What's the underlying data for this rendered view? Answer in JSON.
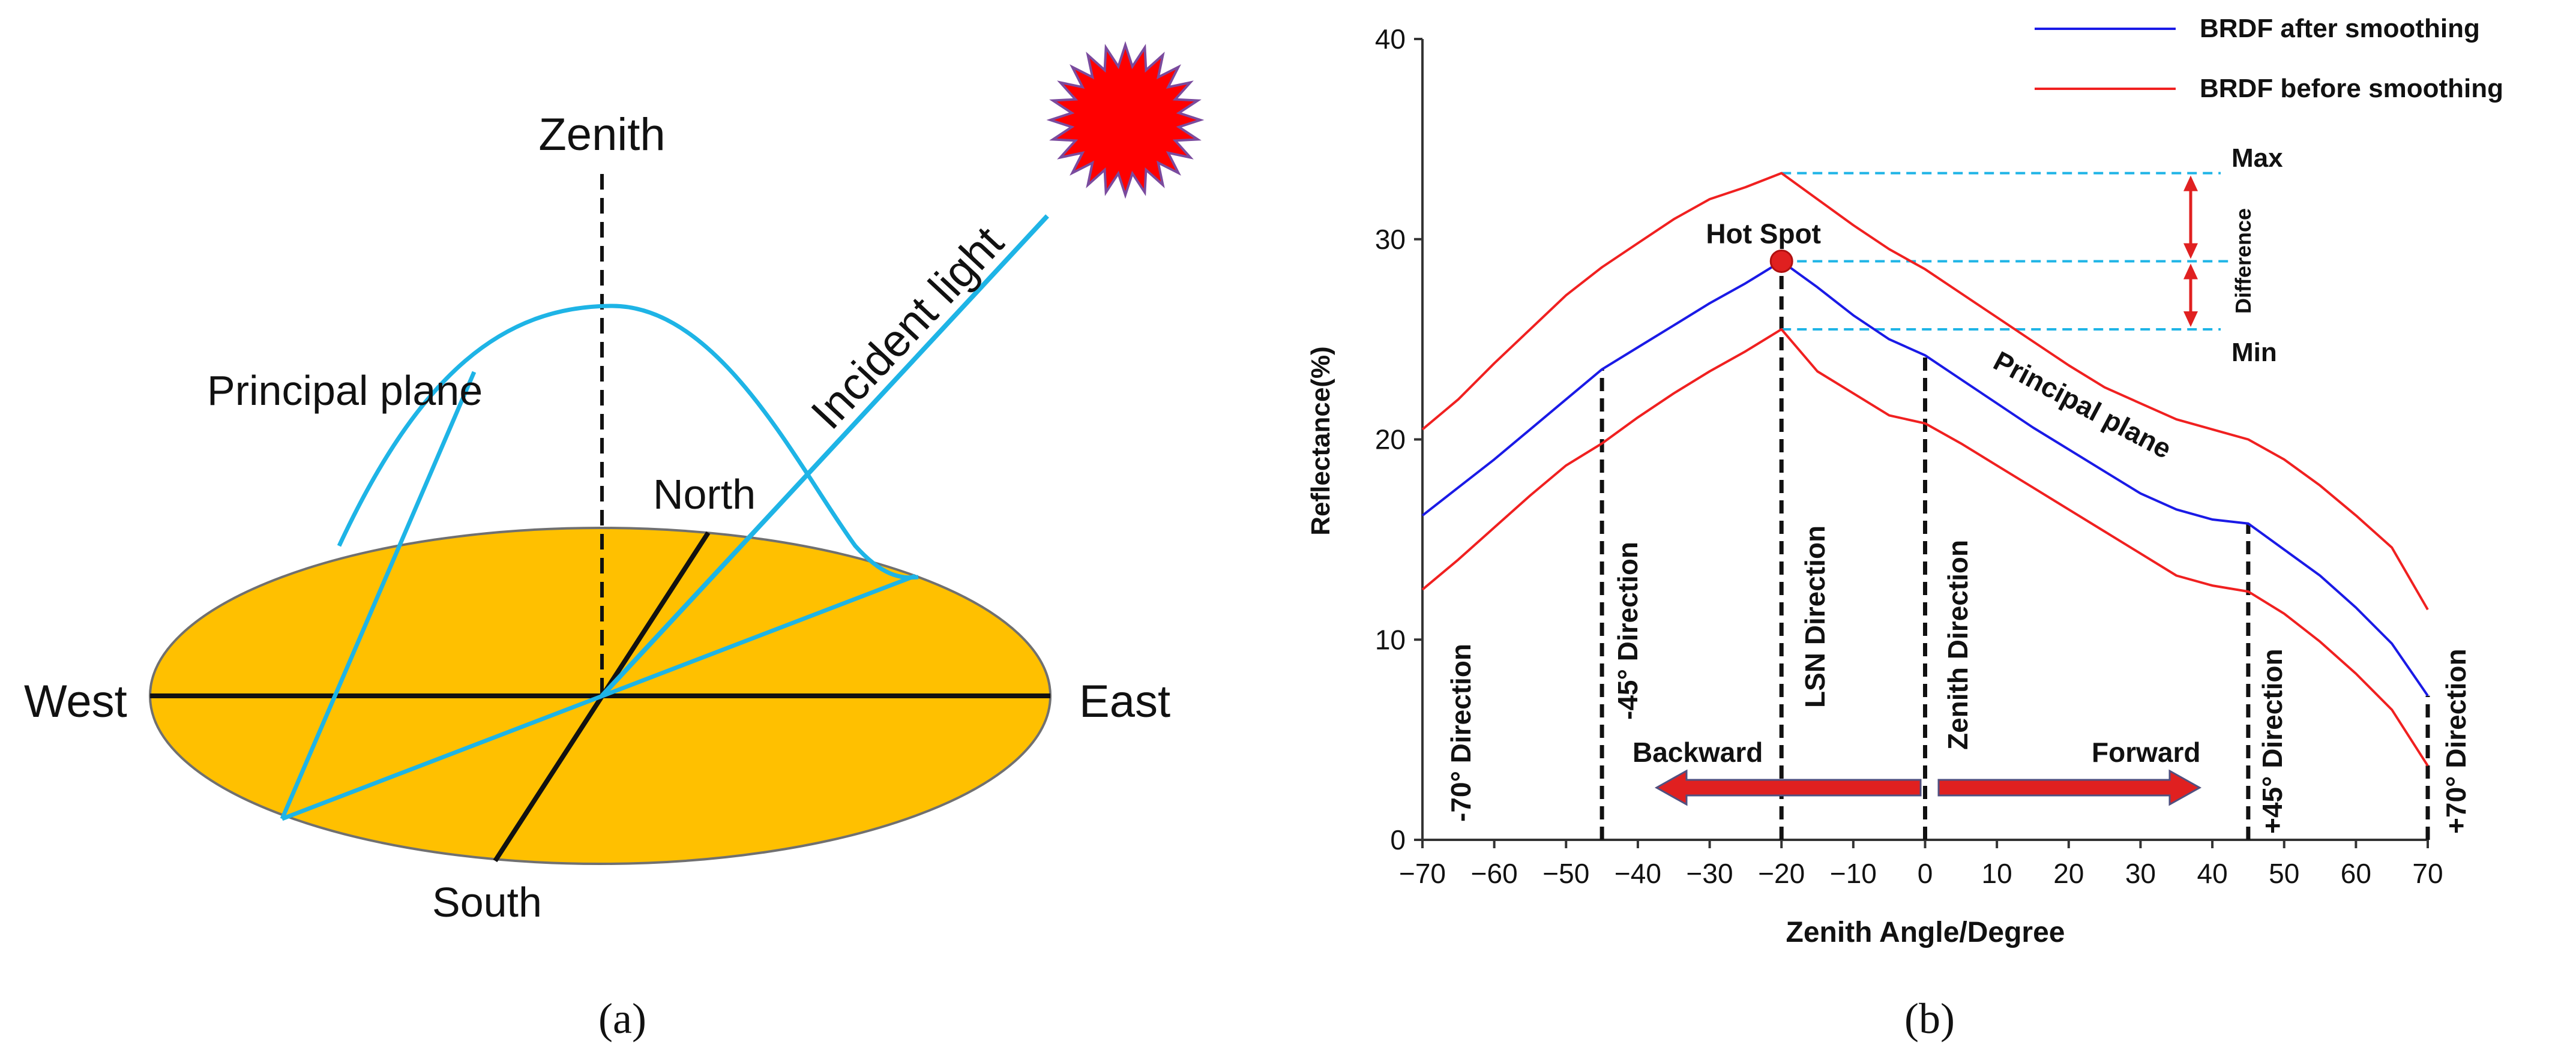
{
  "colors": {
    "disk_fill": "#FFC000",
    "principal_curve": "#1EB4E6",
    "sun_fill": "#FF0000",
    "sun_outline": "#7A4B9E",
    "after_smoothing": "#1A1AE6",
    "before_smoothing": "#F02020",
    "guide_dashed": "#1EB4E6",
    "arrow_red": "#E02020"
  },
  "panel_a": {
    "caption": "(a)",
    "labels": {
      "zenith": "Zenith",
      "incident_light": "Incident light",
      "principal_plane": "Principal plane",
      "north": "North",
      "south": "South",
      "west": "West",
      "east": "East"
    }
  },
  "panel_b": {
    "caption": "(b)",
    "annotations": {
      "hot_spot": "Hot Spot",
      "max": "Max",
      "min": "Min",
      "difference": "Difference",
      "principal_plane": "Principal plane",
      "backward": "Backward",
      "forward": "Forward"
    },
    "direction_labels": {
      "m70": "-70° Direction",
      "m45": "-45° Direction",
      "lsn": "LSN Direction",
      "zenith": "Zenith Direction",
      "p45": "+45° Direction",
      "p70": "+70° Direction"
    }
  },
  "chart_data": {
    "type": "line",
    "xlabel": "Zenith Angle/Degree",
    "ylabel": "Reflectance(%)",
    "xlim": [
      -70,
      70
    ],
    "ylim": [
      0,
      40
    ],
    "x_ticks": [
      "−70",
      "−60",
      "−50",
      "−40",
      "−30",
      "−20",
      "−10",
      "0",
      "10",
      "20",
      "30",
      "40",
      "50",
      "60",
      "70"
    ],
    "x_tick_values": [
      -70,
      -60,
      -50,
      -40,
      -30,
      -20,
      -10,
      0,
      10,
      20,
      30,
      40,
      50,
      60,
      70
    ],
    "y_ticks": [
      "0",
      "10",
      "20",
      "30",
      "40"
    ],
    "y_tick_values": [
      0,
      10,
      20,
      30,
      40
    ],
    "legend": [
      "BRDF after smoothing",
      "BRDF before smoothing"
    ],
    "series": [
      {
        "name": "BRDF after smoothing",
        "x": [
          -70,
          -65,
          -60,
          -55,
          -50,
          -45,
          -40,
          -35,
          -30,
          -25,
          -20,
          -15,
          -10,
          -5,
          0,
          5,
          10,
          15,
          20,
          25,
          30,
          35,
          40,
          45,
          50,
          55,
          60,
          65,
          70
        ],
        "y": [
          16.2,
          17.6,
          19.0,
          20.5,
          22.0,
          23.5,
          24.6,
          25.7,
          26.8,
          27.8,
          28.9,
          27.6,
          26.2,
          25.0,
          24.2,
          23.0,
          21.8,
          20.6,
          19.5,
          18.4,
          17.3,
          16.5,
          16.0,
          15.8,
          14.5,
          13.2,
          11.6,
          9.8,
          7.2
        ]
      },
      {
        "name": "BRDF before smoothing (upper)",
        "x": [
          -70,
          -65,
          -60,
          -55,
          -50,
          -45,
          -40,
          -35,
          -30,
          -25,
          -20,
          -15,
          -10,
          -5,
          0,
          5,
          10,
          15,
          20,
          25,
          30,
          35,
          40,
          45,
          50,
          55,
          60,
          65,
          70
        ],
        "y": [
          20.5,
          22.0,
          23.8,
          25.5,
          27.2,
          28.6,
          29.8,
          31.0,
          32.0,
          32.6,
          33.3,
          32.0,
          30.7,
          29.5,
          28.5,
          27.3,
          26.1,
          24.9,
          23.7,
          22.6,
          21.8,
          21.0,
          20.5,
          20.0,
          19.0,
          17.7,
          16.2,
          14.6,
          11.5
        ]
      },
      {
        "name": "BRDF before smoothing (lower)",
        "x": [
          -70,
          -65,
          -60,
          -55,
          -50,
          -45,
          -40,
          -35,
          -30,
          -25,
          -20,
          -15,
          -10,
          -5,
          0,
          5,
          10,
          15,
          20,
          25,
          30,
          35,
          40,
          45,
          50,
          55,
          60,
          65,
          70
        ],
        "y": [
          12.5,
          14.0,
          15.6,
          17.2,
          18.7,
          19.8,
          21.1,
          22.3,
          23.4,
          24.4,
          25.5,
          23.4,
          22.3,
          21.2,
          20.8,
          19.8,
          18.7,
          17.6,
          16.5,
          15.4,
          14.3,
          13.2,
          12.7,
          12.4,
          11.3,
          9.9,
          8.3,
          6.5,
          3.7
        ]
      }
    ],
    "reference_lines_x": [
      -70,
      -45,
      -20,
      0,
      45,
      70
    ],
    "hot_spot": {
      "x": -20,
      "y": 28.9
    },
    "max_value": 33.3,
    "min_value": 25.5
  }
}
